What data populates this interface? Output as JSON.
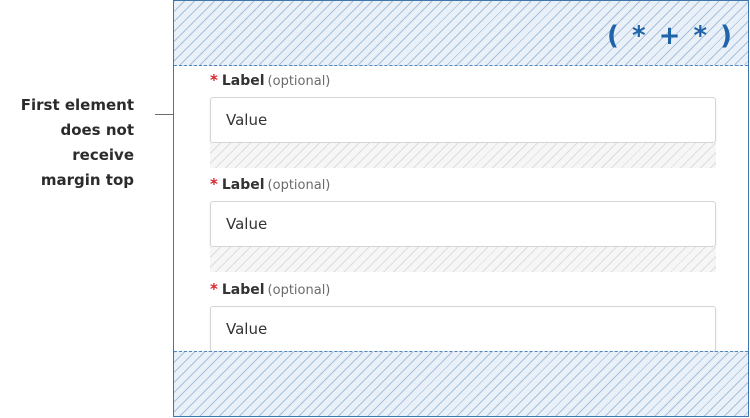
{
  "annotation": {
    "lines": [
      "First element",
      "does not receive",
      "margin top"
    ]
  },
  "selector": {
    "text": "( * + * )"
  },
  "fields": [
    {
      "required_mark": "*",
      "label": "Label",
      "optional": "(optional)",
      "value": "Value"
    },
    {
      "required_mark": "*",
      "label": "Label",
      "optional": "(optional)",
      "value": "Value"
    },
    {
      "required_mark": "*",
      "label": "Label",
      "optional": "(optional)",
      "value": "Value"
    }
  ],
  "colors": {
    "accent_blue": "#1f63a8",
    "border_blue": "#3f77ab",
    "required_red": "#d8262e",
    "hatch_blue_bg": "#e9f0f8",
    "hatch_gray_bg": "#f6f6f6"
  }
}
